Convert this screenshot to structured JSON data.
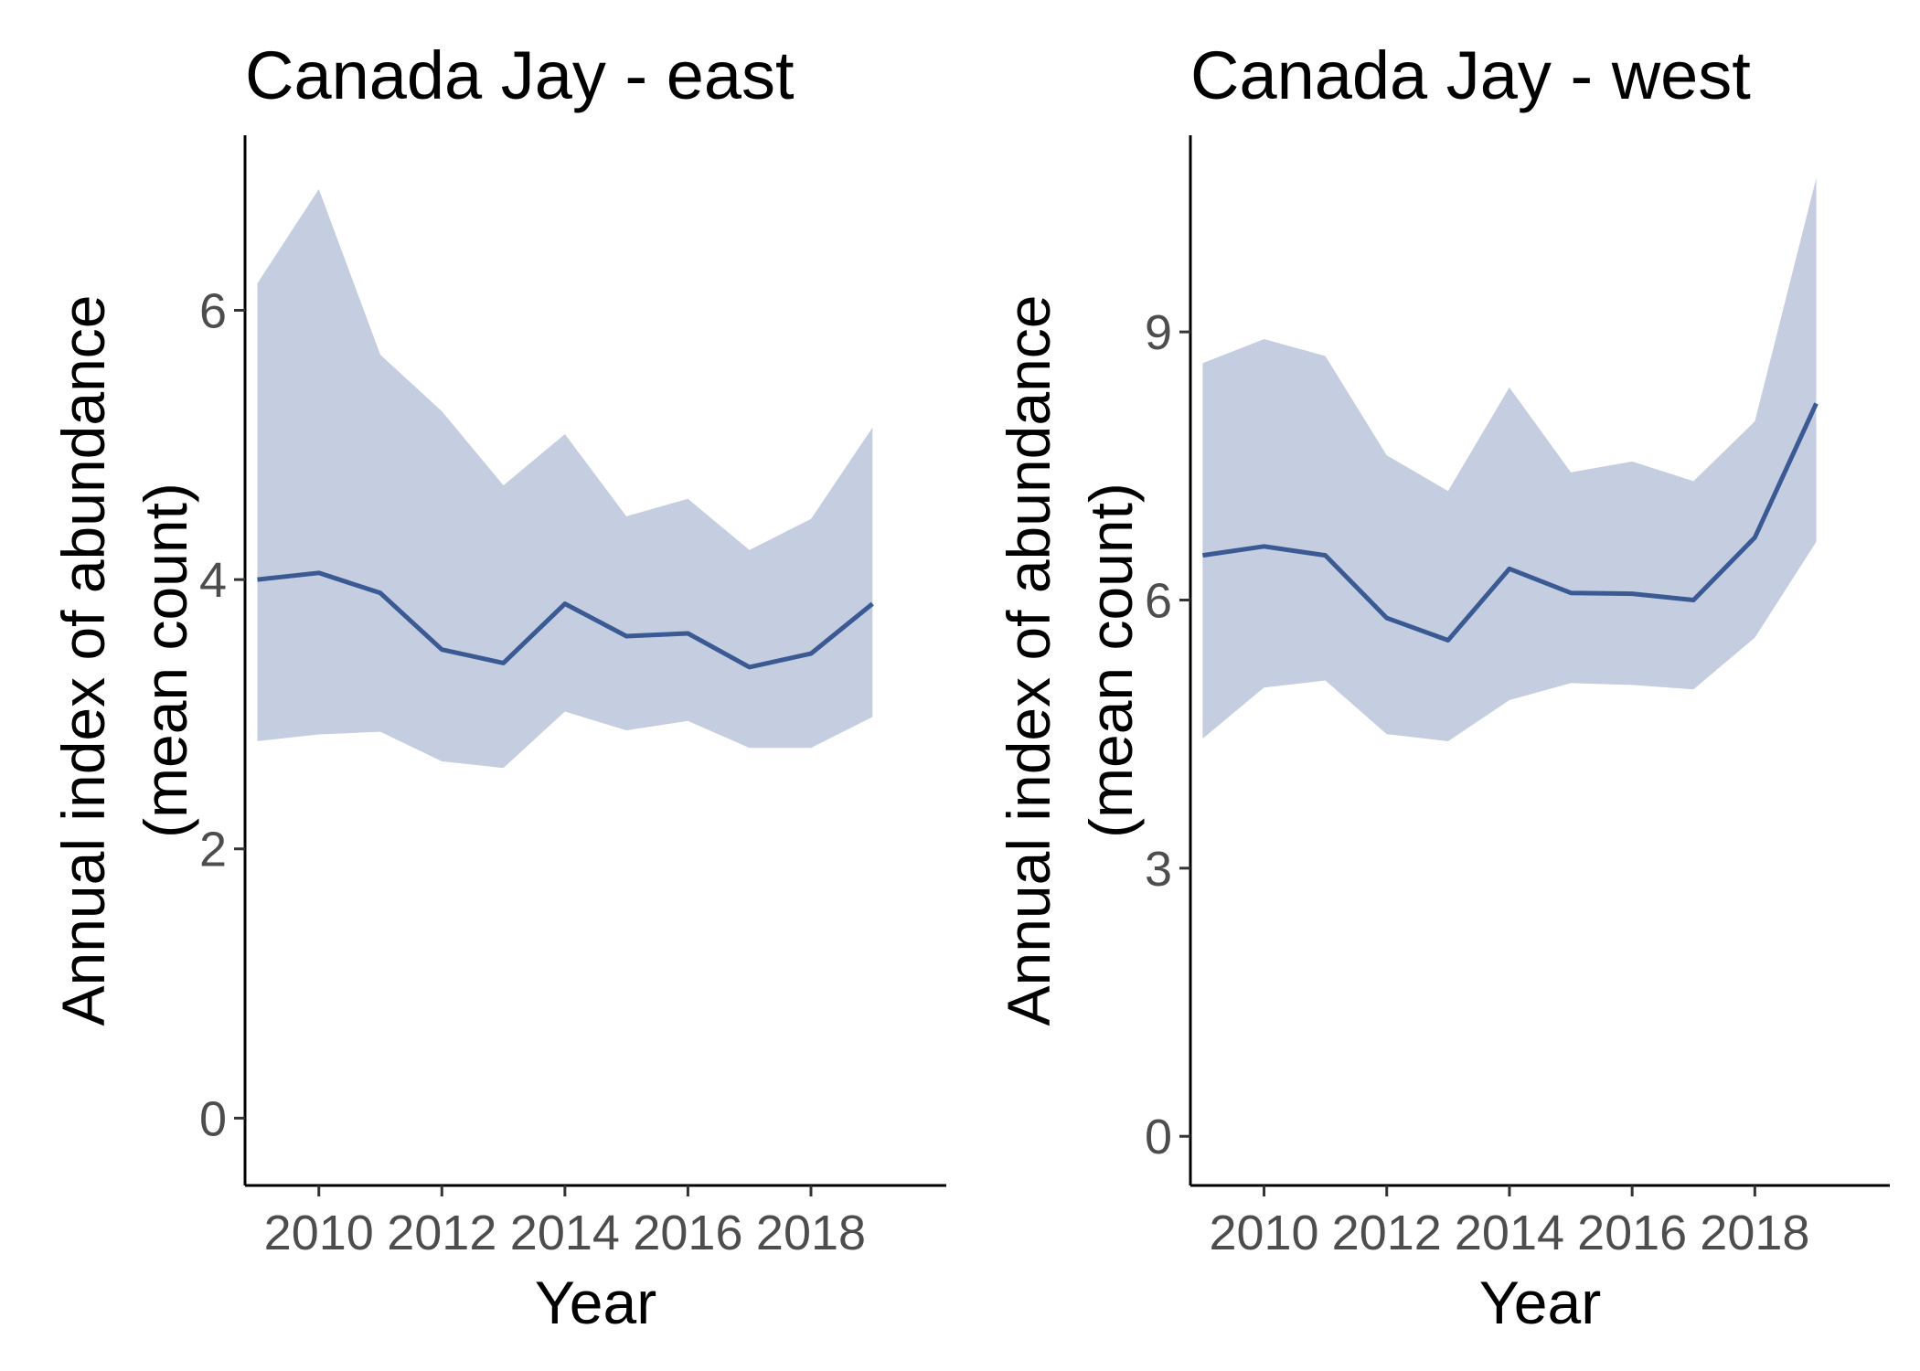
{
  "chart_data": [
    {
      "type": "line",
      "title": "Canada Jay - east",
      "xlabel": "Year",
      "ylabel": [
        "Annual index of abundance",
        "(mean count)"
      ],
      "xlim": [
        2008.8,
        2020.2
      ],
      "ylim": [
        -0.5,
        7.3
      ],
      "xticks": [
        2010,
        2012,
        2014,
        2016,
        2018
      ],
      "yticks": [
        0,
        2,
        4,
        6
      ],
      "grid": false,
      "line_color": "#3b5a93",
      "band_color": "#c5cee0",
      "series": [
        {
          "x": [
            2009,
            2010,
            2011,
            2012,
            2013,
            2014,
            2015,
            2016,
            2017,
            2018,
            2019
          ],
          "values": [
            4.0,
            4.05,
            3.9,
            3.48,
            3.38,
            3.82,
            3.58,
            3.6,
            3.35,
            3.45,
            3.82
          ],
          "lower": [
            2.8,
            2.85,
            2.87,
            2.65,
            2.6,
            3.02,
            2.88,
            2.95,
            2.75,
            2.75,
            2.98
          ],
          "upper": [
            6.2,
            6.9,
            5.67,
            5.25,
            4.7,
            5.08,
            4.47,
            4.6,
            4.22,
            4.45,
            5.13
          ]
        }
      ]
    },
    {
      "type": "line",
      "title": "Canada Jay - west",
      "xlabel": "Year",
      "ylabel": [
        "Annual index of abundance",
        "(mean count)"
      ],
      "xlim": [
        2008.8,
        2020.2
      ],
      "ylim": [
        -0.55,
        11.2
      ],
      "xticks": [
        2010,
        2012,
        2014,
        2016,
        2018
      ],
      "yticks": [
        0,
        3,
        6,
        9
      ],
      "grid": false,
      "line_color": "#3b5a93",
      "band_color": "#c5cee0",
      "series": [
        {
          "x": [
            2009,
            2010,
            2011,
            2012,
            2013,
            2014,
            2015,
            2016,
            2017,
            2018,
            2019
          ],
          "values": [
            6.5,
            6.6,
            6.5,
            5.8,
            5.55,
            6.35,
            6.08,
            6.07,
            6.0,
            6.7,
            8.2
          ],
          "lower": [
            4.45,
            5.02,
            5.1,
            4.5,
            4.42,
            4.88,
            5.07,
            5.05,
            5.0,
            5.58,
            6.65
          ],
          "upper": [
            8.65,
            8.92,
            8.73,
            7.62,
            7.22,
            8.38,
            7.43,
            7.55,
            7.33,
            8.0,
            10.72
          ]
        }
      ]
    }
  ]
}
